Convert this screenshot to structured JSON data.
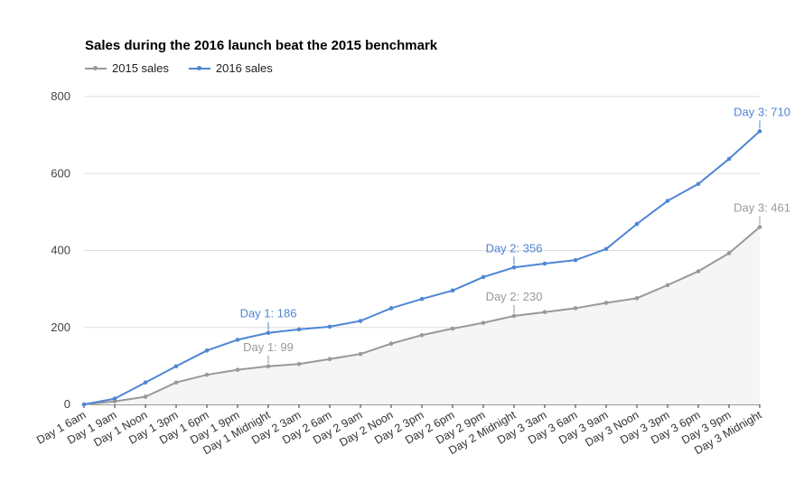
{
  "chart_data": {
    "type": "line",
    "title": "Sales during the 2016 launch beat the 2015 benchmark",
    "xlabel": "",
    "ylabel": "",
    "ylim": [
      0,
      800
    ],
    "yticks": [
      0,
      200,
      400,
      600,
      800
    ],
    "grid": true,
    "legend_position": "top-left",
    "categories": [
      "Day 1 6am",
      "Day 1 9am",
      "Day 1 Noon",
      "Day 1 3pm",
      "Day 1 6pm",
      "Day 1 9pm",
      "Day 1 Midnight",
      "Day 2 3am",
      "Day 2 6am",
      "Day 2 9am",
      "Day 2 Noon",
      "Day 2 3pm",
      "Day 2 6pm",
      "Day 2 9pm",
      "Day 2 Midnight",
      "Day 3 3am",
      "Day 3 6am",
      "Day 3 9am",
      "Day 3 Noon",
      "Day 3 3pm",
      "Day 3 6pm",
      "Day 3 9pm",
      "Day 3 Midnight"
    ],
    "series": [
      {
        "name": "2015 sales",
        "color": "#999999",
        "area_fill": "#f5f5f5",
        "values": [
          0,
          8,
          20,
          57,
          77,
          90,
          99,
          105,
          118,
          131,
          158,
          180,
          197,
          212,
          230,
          240,
          250,
          264,
          276,
          310,
          346,
          393,
          461
        ],
        "annotations": [
          {
            "index": 6,
            "text": "Day 1: 99"
          },
          {
            "index": 14,
            "text": "Day 2: 230"
          },
          {
            "index": 22,
            "text": "Day 3: 461"
          }
        ]
      },
      {
        "name": "2016 sales",
        "color": "#4f86d4",
        "values": [
          0,
          15,
          57,
          99,
          140,
          168,
          186,
          195,
          202,
          217,
          250,
          274,
          296,
          331,
          356,
          366,
          375,
          404,
          469,
          529,
          573,
          638,
          710
        ],
        "annotations": [
          {
            "index": 6,
            "text": "Day 1: 186"
          },
          {
            "index": 14,
            "text": "Day 2: 356"
          },
          {
            "index": 22,
            "text": "Day 3: 710"
          }
        ]
      }
    ]
  }
}
